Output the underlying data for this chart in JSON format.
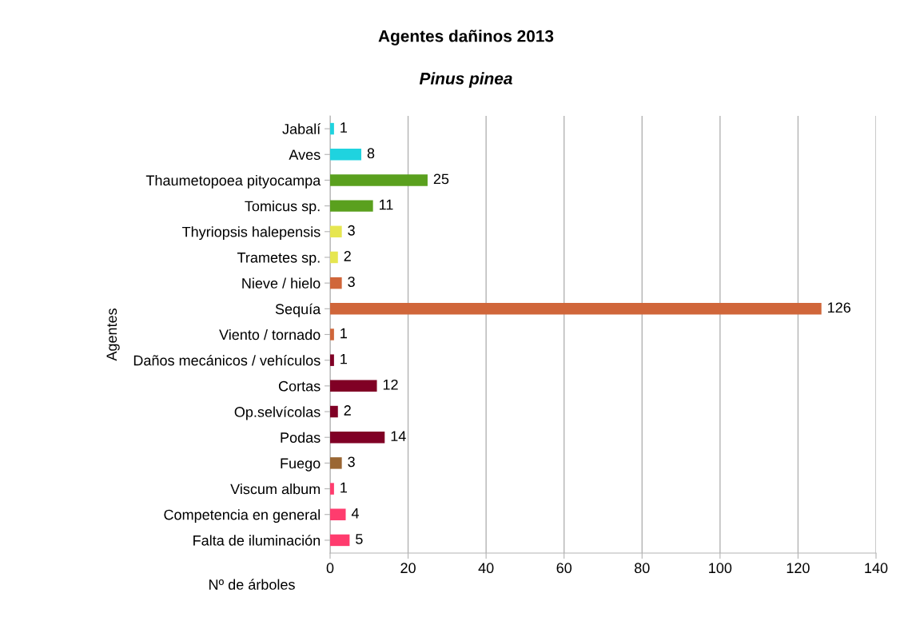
{
  "chart_data": {
    "type": "bar",
    "orientation": "horizontal",
    "title": "Agentes dañinos 2013",
    "subtitle": "Pinus pinea",
    "xlabel": "Nº de árboles",
    "ylabel": "Agentes",
    "categories": [
      "Jabalí",
      "Aves",
      "Thaumetopoea pityocampa",
      "Tomicus sp.",
      "Thyriopsis halepensis",
      "Trametes sp.",
      "Nieve / hielo",
      "Sequía",
      "Viento / tornado",
      "Daños mecánicos / vehículos",
      "Cortas",
      "Op.selvícolas",
      "Podas",
      "Fuego",
      "Viscum album",
      "Competencia en general",
      "Falta de iluminación"
    ],
    "values": [
      1,
      8,
      25,
      11,
      3,
      2,
      3,
      126,
      1,
      1,
      12,
      2,
      14,
      3,
      1,
      4,
      5
    ],
    "colors": [
      "#1fd3df",
      "#1fd3df",
      "#5aa01e",
      "#5aa01e",
      "#e6e650",
      "#e6e650",
      "#d0663a",
      "#d0663a",
      "#d0663a",
      "#800025",
      "#800025",
      "#800025",
      "#800025",
      "#9a6633",
      "#ff3c6e",
      "#ff3c6e",
      "#ff3c6e"
    ],
    "xlim": [
      0,
      140
    ],
    "xticks": [
      0,
      20,
      40,
      60,
      80,
      100,
      120,
      140
    ],
    "grid": "x",
    "data_labels": true
  }
}
